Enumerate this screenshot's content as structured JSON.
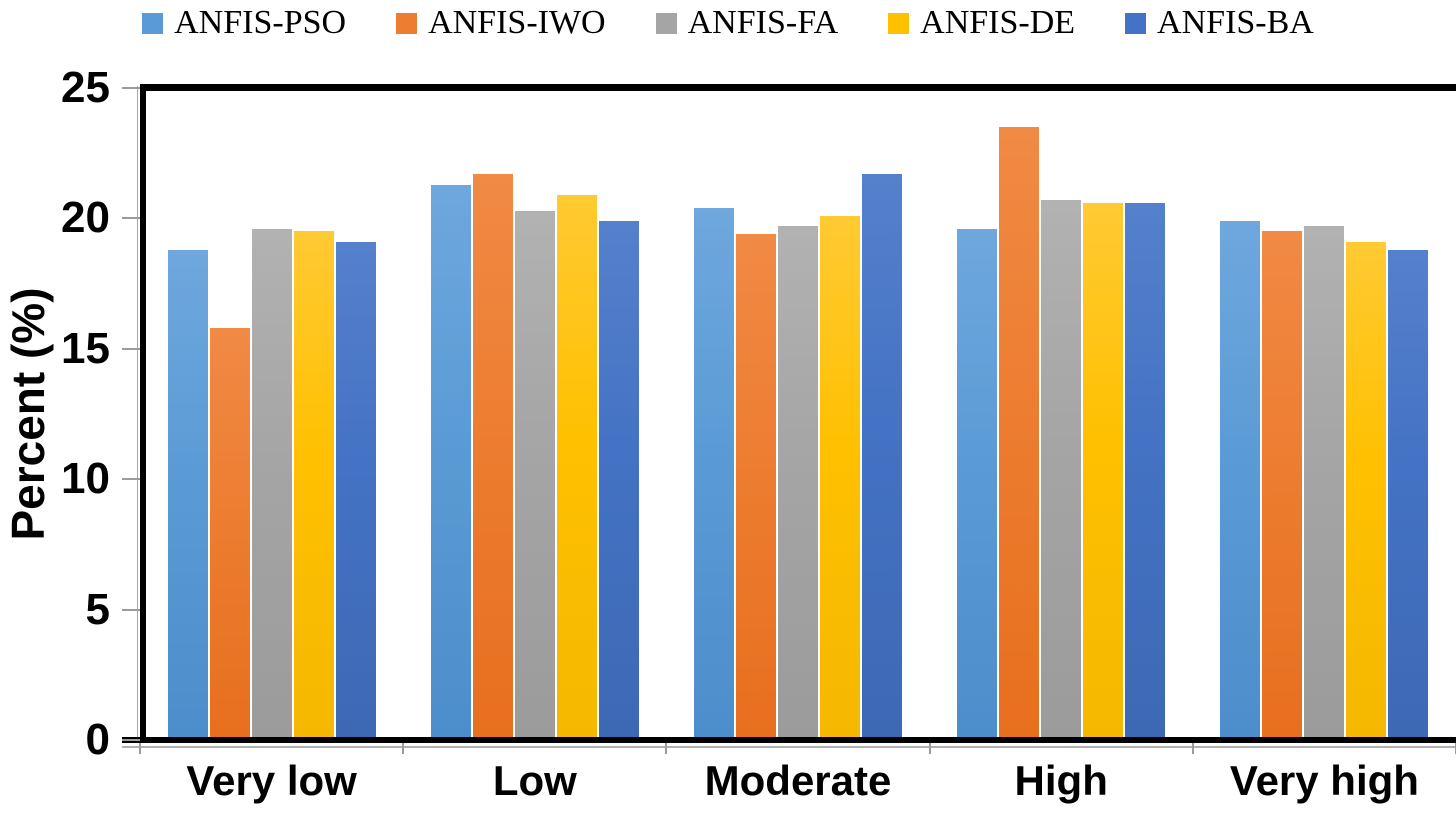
{
  "chart_data": {
    "type": "bar",
    "title": "",
    "xlabel": "",
    "ylabel": "Percent (%)",
    "ylim": [
      0,
      25
    ],
    "yticks": [
      0,
      5,
      10,
      15,
      20,
      25
    ],
    "grid": false,
    "legend_position": "top",
    "categories": [
      "Very low",
      "Low",
      "Moderate",
      "High",
      "Very high"
    ],
    "series": [
      {
        "name": "ANFIS-PSO",
        "color": "#5B9BD5",
        "color_top": "#6FA7DE",
        "color_bottom": "#4C8DCB",
        "values": [
          18.8,
          21.3,
          20.4,
          19.6,
          19.9
        ]
      },
      {
        "name": "ANFIS-IWO",
        "color": "#ED7D31",
        "color_top": "#F08A45",
        "color_bottom": "#E76F1E",
        "values": [
          15.8,
          21.7,
          19.4,
          23.5,
          19.5
        ]
      },
      {
        "name": "ANFIS-FA",
        "color": "#A5A5A5",
        "color_top": "#B2B2B2",
        "color_bottom": "#9B9B9B",
        "values": [
          19.6,
          20.3,
          19.7,
          20.7,
          19.7
        ]
      },
      {
        "name": "ANFIS-DE",
        "color": "#FFC000",
        "color_top": "#FFCA33",
        "color_bottom": "#F5B800",
        "values": [
          19.5,
          20.9,
          20.1,
          20.6,
          19.1
        ]
      },
      {
        "name": "ANFIS-BA",
        "color": "#4472C4",
        "color_top": "#5580CC",
        "color_bottom": "#3D68B4",
        "values": [
          19.1,
          19.9,
          21.7,
          20.6,
          18.8
        ]
      }
    ],
    "axis_color": "#000000",
    "tick_color": "#9B9B9B"
  }
}
